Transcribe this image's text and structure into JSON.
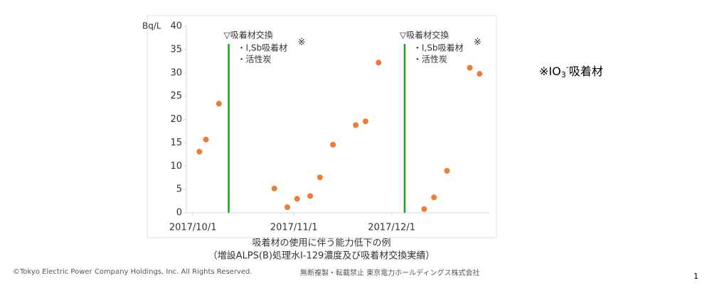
{
  "chart_data": {
    "type": "scatter",
    "y_unit": "Bq/L",
    "x": [
      "2017/10/3",
      "2017/10/5",
      "2017/10/9",
      "2017/10/26",
      "2017/10/30",
      "2017/11/2",
      "2017/11/6",
      "2017/11/9",
      "2017/11/13",
      "2017/11/20",
      "2017/11/23",
      "2017/11/27",
      "2017/12/11",
      "2017/12/14",
      "2017/12/18",
      "2017/12/25",
      "2017/12/28"
    ],
    "values": [
      13.1,
      15.7,
      23.4,
      5.2,
      1.2,
      3.0,
      3.6,
      7.6,
      14.6,
      18.8,
      19.6,
      32.2,
      0.8,
      3.3,
      9.0,
      31.1,
      29.8
    ],
    "color": "#ed7d31",
    "xlim": [
      "2017/9/29",
      "2017/12/31"
    ],
    "xticks": [
      "2017/10/1",
      "2017/11/1",
      "2017/12/1"
    ],
    "ylim": [
      0,
      40
    ],
    "yticks": [
      0,
      5,
      10,
      15,
      20,
      25,
      30,
      35,
      40
    ],
    "annotations": [
      {
        "x": "2017/10/12",
        "title": "▽吸着材交換",
        "items": [
          "・I,Sb吸着材",
          "・活性炭"
        ],
        "mark": "※",
        "color": "#1aa31a"
      },
      {
        "x": "2017/12/5",
        "title": "▽吸着材交換",
        "items": [
          "・I,Sb吸着材",
          "・活性炭"
        ],
        "mark": "※",
        "color": "#1aa31a"
      }
    ],
    "caption": [
      "吸着材の使用に伴う能力低下の例",
      "（増設ALPS(B)処理水I-129濃度及び吸着材交換実績）"
    ]
  },
  "note": {
    "prefix": "※IO",
    "sub": "3",
    "sup": "-",
    "suffix": "吸着材"
  },
  "footer": {
    "copyright": "©Tokyo Electric Power Company Holdings, Inc. All Rights Reserved.",
    "notice": "無断複製・転載禁止 東京電力ホールディングス株式会社",
    "page": "1"
  }
}
